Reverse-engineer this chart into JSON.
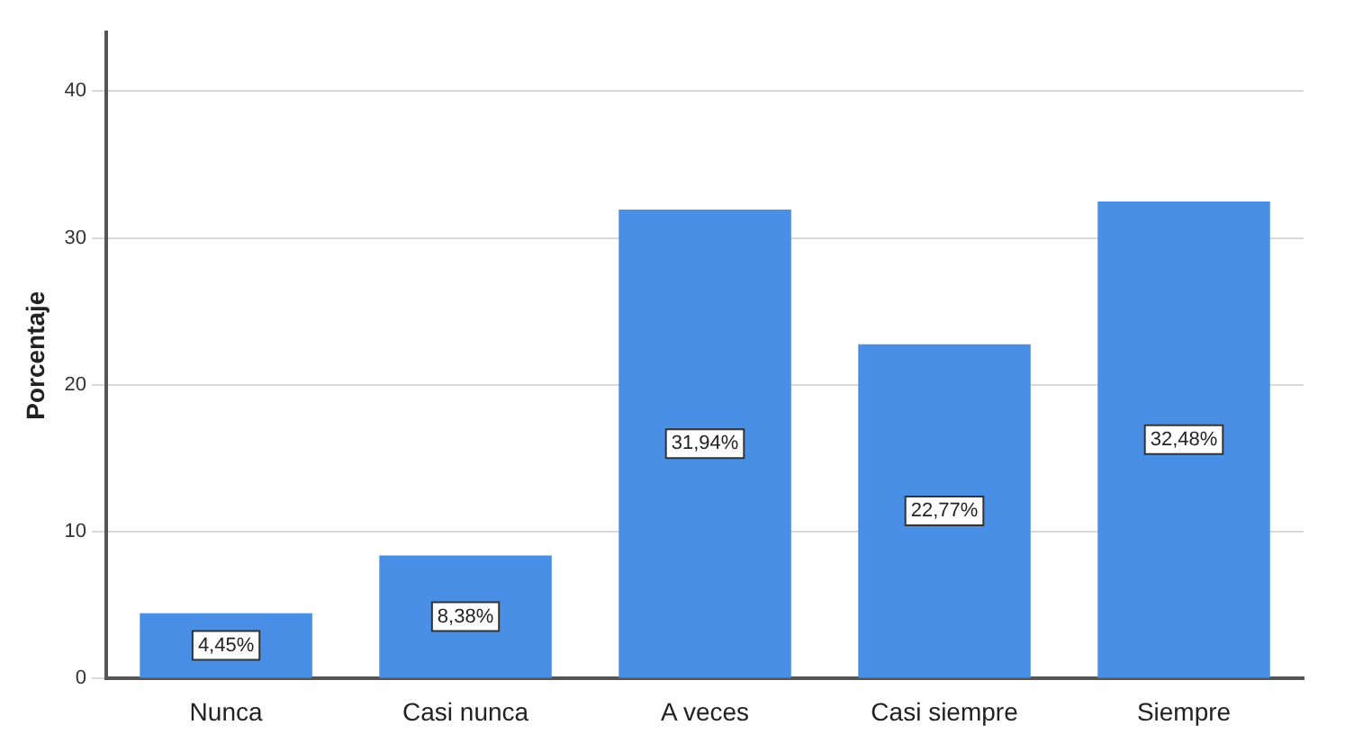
{
  "chart_data": {
    "type": "bar",
    "ylabel": "Porcentaje",
    "categories": [
      "Nunca",
      "Casi nunca",
      "A veces",
      "Casi siempre",
      "Siempre"
    ],
    "values": [
      4.45,
      8.38,
      31.94,
      22.77,
      32.48
    ],
    "value_labels": [
      "4,45%",
      "8,38%",
      "31,94%",
      "22,77%",
      "32,48%"
    ],
    "color": "#4a8fe6",
    "ylim": [
      0,
      44
    ],
    "yticks": [
      0,
      10,
      20,
      30,
      40
    ],
    "grid": "y"
  }
}
